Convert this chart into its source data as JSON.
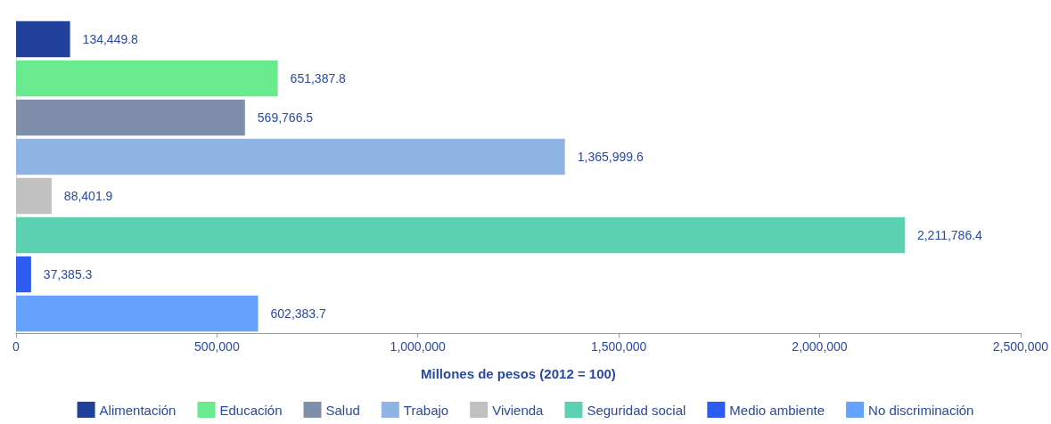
{
  "chart_data": {
    "type": "bar",
    "orientation": "horizontal",
    "xlabel": "Millones de pesos (2012 = 100)",
    "categories": [
      null,
      null,
      null,
      null,
      null,
      null,
      null,
      null
    ],
    "series": [
      {
        "name": "Alimentación",
        "color": "#21409a",
        "values": [
          134449.8,
          null,
          null,
          null,
          null,
          null,
          null,
          null
        ],
        "value_labels": [
          "134,449.8",
          null,
          null,
          null,
          null,
          null,
          null,
          null
        ]
      },
      {
        "name": "Educación",
        "color": "#6aea8e",
        "values": [
          null,
          651387.8,
          null,
          null,
          null,
          null,
          null,
          null
        ],
        "value_labels": [
          null,
          "651,387.8",
          null,
          null,
          null,
          null,
          null,
          null
        ]
      },
      {
        "name": "Salud",
        "color": "#7f8faa",
        "values": [
          null,
          null,
          569766.5,
          null,
          null,
          null,
          null,
          null
        ],
        "value_labels": [
          null,
          null,
          "569,766.5",
          null,
          null,
          null,
          null,
          null
        ]
      },
      {
        "name": "Trabajo",
        "color": "#8fb4e3",
        "values": [
          null,
          null,
          null,
          1365999.6,
          null,
          null,
          null,
          null
        ],
        "value_labels": [
          null,
          null,
          null,
          "1,365,999.6",
          null,
          null,
          null,
          null
        ]
      },
      {
        "name": "Vivienda",
        "color": "#c0c0c0",
        "values": [
          null,
          null,
          null,
          null,
          88401.9,
          null,
          null,
          null
        ],
        "value_labels": [
          null,
          null,
          null,
          null,
          "88,401.9",
          null,
          null,
          null
        ]
      },
      {
        "name": "Seguridad social",
        "color": "#5cd1b2",
        "values": [
          null,
          null,
          null,
          null,
          null,
          2211786.4,
          null,
          null
        ],
        "value_labels": [
          null,
          null,
          null,
          null,
          null,
          "2,211,786.4",
          null,
          null
        ]
      },
      {
        "name": "Medio ambiente",
        "color": "#2f5cf0",
        "values": [
          null,
          null,
          null,
          null,
          null,
          null,
          37385.3,
          null
        ],
        "value_labels": [
          null,
          null,
          null,
          null,
          null,
          null,
          "37,385.3",
          null
        ]
      },
      {
        "name": "No discriminación",
        "color": "#66a3ff",
        "values": [
          null,
          null,
          null,
          null,
          null,
          null,
          null,
          602383.7
        ],
        "value_labels": [
          null,
          null,
          null,
          null,
          null,
          null,
          null,
          "602,383.7"
        ]
      }
    ],
    "xlim": [
      0,
      2500000
    ],
    "xticks": [
      0,
      {
        "value": 500000,
        "label": "500,000"
      },
      {
        "value": 1000000,
        "label": "1,000,000"
      },
      {
        "value": 1500000,
        "label": "1,500,000"
      },
      {
        "value": 2000000,
        "label": "2,000,000"
      },
      {
        "value": 2500000,
        "label": "2,500,000"
      }
    ],
    "legend": "bottom",
    "grid": false
  }
}
